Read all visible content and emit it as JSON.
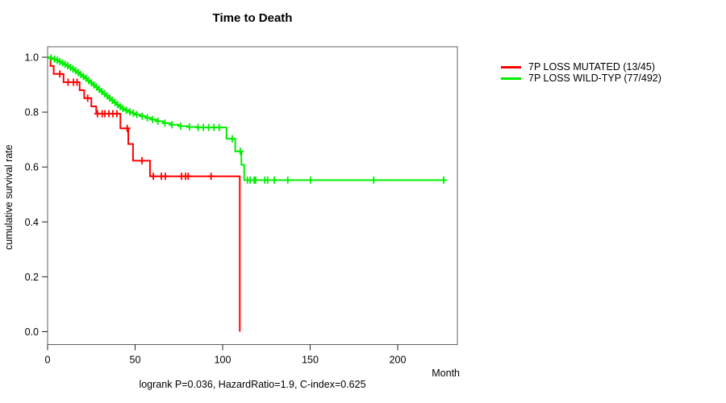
{
  "background_color": "#ffffff",
  "chart_data": {
    "type": "line",
    "subtype": "kaplan-meier-step-survival",
    "title": "Time to Death",
    "xlabel": "Month",
    "ylabel": "cumulative survival rate",
    "caption": "logrank P=0.036, HazardRatio=1.9, C-index=0.625",
    "xlim": [
      0,
      234
    ],
    "ylim": [
      0.0,
      1.0
    ],
    "x_ticks": [
      0,
      50,
      100,
      150,
      200
    ],
    "y_ticks": [
      0.0,
      0.2,
      0.4,
      0.6,
      0.8,
      1.0
    ],
    "grid": false,
    "legend_position": "right-outside-top",
    "box_color": "#606060",
    "tick_color": "#222222",
    "series": [
      {
        "name": "7P LOSS MUTATED (13/45)",
        "color": "#ff0000",
        "events": 13,
        "n": 45,
        "end_month": 109.8,
        "steps": [
          [
            0,
            1.0
          ],
          [
            1.7,
            0.968
          ],
          [
            3.5,
            0.939
          ],
          [
            9.1,
            0.909
          ],
          [
            18.3,
            0.88
          ],
          [
            20.9,
            0.851
          ],
          [
            25.0,
            0.821
          ],
          [
            27.8,
            0.794
          ],
          [
            41.6,
            0.741
          ],
          [
            46.1,
            0.684
          ],
          [
            48.8,
            0.623
          ],
          [
            58.5,
            0.566
          ],
          [
            109.8,
            0.0
          ]
        ],
        "censors": [
          [
            7.0,
            0.939
          ],
          [
            11.7,
            0.909
          ],
          [
            14.8,
            0.909
          ],
          [
            16.8,
            0.909
          ],
          [
            22.9,
            0.851
          ],
          [
            28.5,
            0.794
          ],
          [
            31.2,
            0.794
          ],
          [
            32.7,
            0.794
          ],
          [
            35.0,
            0.794
          ],
          [
            37.3,
            0.794
          ],
          [
            39.6,
            0.794
          ],
          [
            45.5,
            0.741
          ],
          [
            53.9,
            0.623
          ],
          [
            60.4,
            0.566
          ],
          [
            65.0,
            0.566
          ],
          [
            67.3,
            0.566
          ],
          [
            76.5,
            0.566
          ],
          [
            78.8,
            0.566
          ],
          [
            80.3,
            0.566
          ],
          [
            93.4,
            0.566
          ]
        ]
      },
      {
        "name": "7P LOSS WILD-TYP (77/492)",
        "color": "#00ee00",
        "events": 77,
        "n": 492,
        "end_month": 226.5,
        "steps": [
          [
            0,
            1.0
          ],
          [
            1.5,
            0.997
          ],
          [
            3,
            0.993
          ],
          [
            4.5,
            0.989
          ],
          [
            6,
            0.984
          ],
          [
            7.5,
            0.979
          ],
          [
            9,
            0.974
          ],
          [
            10.5,
            0.969
          ],
          [
            12,
            0.963
          ],
          [
            13.5,
            0.957
          ],
          [
            15,
            0.951
          ],
          [
            16.5,
            0.944
          ],
          [
            18,
            0.937
          ],
          [
            19.5,
            0.93
          ],
          [
            21,
            0.923
          ],
          [
            22.5,
            0.915
          ],
          [
            24,
            0.907
          ],
          [
            25.5,
            0.899
          ],
          [
            27,
            0.891
          ],
          [
            28.5,
            0.883
          ],
          [
            30,
            0.875
          ],
          [
            31.5,
            0.867
          ],
          [
            33,
            0.859
          ],
          [
            34.5,
            0.851
          ],
          [
            36,
            0.843
          ],
          [
            37.5,
            0.835
          ],
          [
            39,
            0.827
          ],
          [
            40.5,
            0.82
          ],
          [
            42,
            0.813
          ],
          [
            44,
            0.807
          ],
          [
            46,
            0.801
          ],
          [
            48,
            0.796
          ],
          [
            50,
            0.791
          ],
          [
            53,
            0.785
          ],
          [
            56,
            0.779
          ],
          [
            59,
            0.773
          ],
          [
            62,
            0.767
          ],
          [
            66,
            0.76
          ],
          [
            70,
            0.754
          ],
          [
            75,
            0.749
          ],
          [
            80,
            0.746
          ],
          [
            85,
            0.744
          ],
          [
            102.2,
            0.703
          ],
          [
            107.2,
            0.657
          ],
          [
            110.7,
            0.608
          ],
          [
            112.3,
            0.552
          ]
        ],
        "censors": [
          [
            2,
            0.997
          ],
          [
            4,
            0.993
          ],
          [
            5.5,
            0.989
          ],
          [
            7,
            0.984
          ],
          [
            8.5,
            0.979
          ],
          [
            10,
            0.974
          ],
          [
            11.5,
            0.969
          ],
          [
            13,
            0.963
          ],
          [
            14.5,
            0.957
          ],
          [
            16,
            0.951
          ],
          [
            17.5,
            0.944
          ],
          [
            19,
            0.937
          ],
          [
            20.5,
            0.93
          ],
          [
            22,
            0.923
          ],
          [
            23.5,
            0.915
          ],
          [
            25,
            0.907
          ],
          [
            26.5,
            0.899
          ],
          [
            28,
            0.891
          ],
          [
            29.5,
            0.883
          ],
          [
            31,
            0.875
          ],
          [
            32.5,
            0.867
          ],
          [
            34,
            0.859
          ],
          [
            35.5,
            0.851
          ],
          [
            37,
            0.843
          ],
          [
            38.5,
            0.835
          ],
          [
            40,
            0.827
          ],
          [
            41.5,
            0.82
          ],
          [
            43,
            0.813
          ],
          [
            45,
            0.807
          ],
          [
            47,
            0.801
          ],
          [
            49,
            0.796
          ],
          [
            51,
            0.791
          ],
          [
            54,
            0.785
          ],
          [
            57,
            0.779
          ],
          [
            60,
            0.773
          ],
          [
            63,
            0.767
          ],
          [
            67,
            0.76
          ],
          [
            71,
            0.754
          ],
          [
            76,
            0.749
          ],
          [
            81,
            0.746
          ],
          [
            86,
            0.744
          ],
          [
            89,
            0.744
          ],
          [
            92,
            0.744
          ],
          [
            95,
            0.744
          ],
          [
            98,
            0.744
          ],
          [
            105.5,
            0.703
          ],
          [
            110.1,
            0.657
          ],
          [
            114.2,
            0.552
          ],
          [
            115.7,
            0.552
          ],
          [
            118.0,
            0.552
          ],
          [
            118.8,
            0.552
          ],
          [
            124.1,
            0.552
          ],
          [
            125.7,
            0.552
          ],
          [
            129.5,
            0.552
          ],
          [
            137.2,
            0.552
          ],
          [
            150.2,
            0.552
          ],
          [
            186.3,
            0.552
          ],
          [
            226.3,
            0.552
          ]
        ]
      }
    ]
  }
}
